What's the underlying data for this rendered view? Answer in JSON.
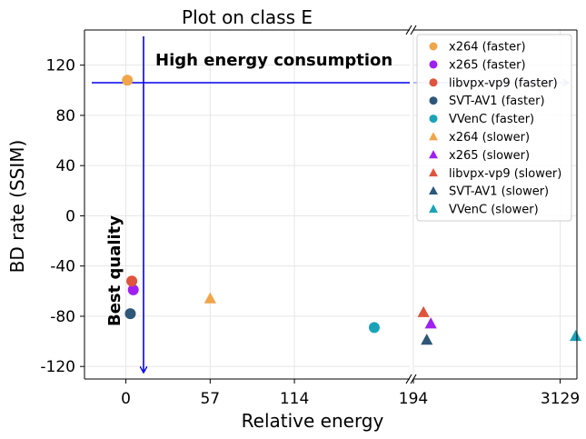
{
  "chart_data": {
    "type": "scatter",
    "title": "Plot on class E",
    "xlabel": "Relative energy",
    "ylabel": "BD rate (SSIM)",
    "ylim": [
      -130,
      148
    ],
    "y_ticks": [
      120,
      80,
      40,
      0,
      -40,
      -80,
      -120
    ],
    "y_tick_labels": [
      "120",
      "80",
      "40",
      "0",
      "-40",
      "-80",
      "-120"
    ],
    "x_segments": [
      {
        "range": [
          -28,
          192
        ],
        "ticks": [
          0,
          57,
          114
        ],
        "tick_labels": [
          "0",
          "57",
          "114"
        ]
      },
      {
        "range": [
          194,
          4300
        ],
        "ticks": [
          194,
          3129
        ],
        "tick_labels": [
          "194",
          "3129"
        ]
      }
    ],
    "grid": true,
    "legend_position": "top-right",
    "annotations": {
      "top": "High energy consumption",
      "left": "Best quality"
    },
    "reference_lines": {
      "horizontal_y": 108,
      "vertical_x": 0
    },
    "series": [
      {
        "name": "x264 (faster)",
        "marker": "circle",
        "color": "#f0a54a",
        "points": [
          {
            "x": 1,
            "y": 108
          }
        ]
      },
      {
        "name": "x265 (faster)",
        "marker": "circle",
        "color": "#a020f0",
        "points": [
          {
            "x": 5,
            "y": -59
          }
        ]
      },
      {
        "name": "libvpx-vp9 (faster)",
        "marker": "circle",
        "color": "#e0533c",
        "points": [
          {
            "x": 4,
            "y": -52
          }
        ]
      },
      {
        "name": "SVT-AV1 (faster)",
        "marker": "circle",
        "color": "#2e5778",
        "points": [
          {
            "x": 3,
            "y": -78
          }
        ]
      },
      {
        "name": "VVenC (faster)",
        "marker": "circle",
        "color": "#1aa3b8",
        "points": [
          {
            "x": 168,
            "y": -89
          }
        ]
      },
      {
        "name": "x264 (slower)",
        "marker": "triangle",
        "color": "#f0a54a",
        "points": [
          {
            "x": 57,
            "y": -66
          }
        ]
      },
      {
        "name": "x265 (slower)",
        "marker": "triangle",
        "color": "#a020f0",
        "points": [
          {
            "x": 270,
            "y": -86
          }
        ]
      },
      {
        "name": "libvpx-vp9 (slower)",
        "marker": "triangle",
        "color": "#e0533c",
        "points": [
          {
            "x": 235,
            "y": -77
          }
        ]
      },
      {
        "name": "SVT-AV1 (slower)",
        "marker": "triangle",
        "color": "#2e5778",
        "points": [
          {
            "x": 250,
            "y": -99
          }
        ]
      },
      {
        "name": "VVenC (slower)",
        "marker": "triangle",
        "color": "#1aa3b8",
        "points": [
          {
            "x": 4200,
            "y": -96
          }
        ]
      }
    ]
  }
}
